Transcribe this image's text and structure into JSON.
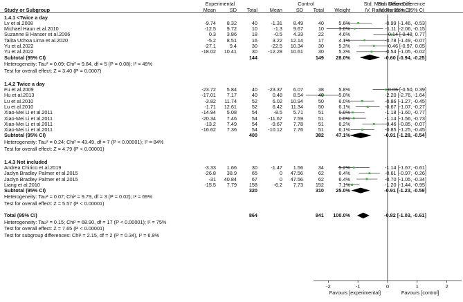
{
  "header": {
    "group_experimental": "Experimental",
    "group_control": "Control",
    "std_mean_diff": "Std. Mean Difference",
    "study_label": "Study or Subgroup",
    "mean": "Mean",
    "sd": "SD",
    "total": "Total",
    "weight": "Weight",
    "method": "IV, Random, 95% CI"
  },
  "chart_data": {
    "type": "forest",
    "title": "Std. Mean Difference",
    "method": "IV, Random, 95% CI",
    "x_ticks": [
      "-2",
      "-1",
      "0",
      "1",
      "2"
    ],
    "xlim": [
      -2.5,
      2.5
    ],
    "favours_left": "Favours [experimental]",
    "favours_right": "Favours [control]",
    "subgroups": [
      {
        "name": "1.4.1 <Twice a day",
        "studies": [
          {
            "study": "Lv et al.2008",
            "exp_mean": "-9.74",
            "exp_sd": "8.32",
            "exp_total": "40",
            "ctl_mean": "-1.31",
            "ctl_sd": "8.49",
            "ctl_total": "40",
            "weight": "5.6%",
            "ci_text": "-0.99 [-1.46, -0.53]",
            "est": -0.99,
            "lo": -1.46,
            "hi": -0.53
          },
          {
            "study": "Michael Haun et al.2010",
            "exp_mean": "-12.5",
            "exp_sd": "9.72",
            "exp_total": "10",
            "ctl_mean": "-1.3",
            "ctl_sd": "9.67",
            "ctl_total": "10",
            "weight": "3.0%",
            "ci_text": "-1.11 [-2.06, -0.15]",
            "est": -1.11,
            "lo": -2.06,
            "hi": -0.15
          },
          {
            "study": "Suzanne B Hanser et al.2006",
            "exp_mean": "0.3",
            "exp_sd": "3.86",
            "exp_total": "18",
            "ctl_mean": "-0.5",
            "ctl_sd": "4.33",
            "ctl_total": "22",
            "weight": "4.6%",
            "ci_text": "0.14 [-0.48, 0.77]",
            "est": 0.14,
            "lo": -0.48,
            "hi": 0.77
          },
          {
            "study": "Talita Uchoa Lima et al.2020",
            "exp_mean": "-5.2",
            "exp_sd": "8.51",
            "exp_total": "16",
            "ctl_mean": "3.22",
            "ctl_sd": "12.14",
            "ctl_total": "17",
            "weight": "4.1%",
            "ci_text": "-0.78 [-1.49, -0.07]",
            "est": -0.78,
            "lo": -1.49,
            "hi": -0.07
          },
          {
            "study": "Yu et al.2022",
            "exp_mean": "-27.1",
            "exp_sd": "9.4",
            "exp_total": "30",
            "ctl_mean": "-22.5",
            "ctl_sd": "10.34",
            "ctl_total": "30",
            "weight": "5.3%",
            "ci_text": "-0.46 [-0.97, 0.05]",
            "est": -0.46,
            "lo": -0.97,
            "hi": 0.05
          },
          {
            "study": "Yu et al.2022",
            "exp_mean": "-18.02",
            "exp_sd": "10.41",
            "exp_total": "30",
            "ctl_mean": "-12.28",
            "ctl_sd": "10.61",
            "ctl_total": "30",
            "weight": "5.3%",
            "ci_text": "-0.54 [-1.05, -0.02]",
            "est": -0.54,
            "lo": -1.05,
            "hi": -0.02
          }
        ],
        "subtotal": {
          "label": "Subtotal (95% CI)",
          "exp_total": "144",
          "ctl_total": "149",
          "weight": "28.0%",
          "ci_text": "-0.60 [-0.94, -0.25]",
          "est": -0.6,
          "lo": -0.94,
          "hi": -0.25
        },
        "heterogeneity": "Heterogeneity: Tau² = 0.09; Chi² = 9.84, df = 5 (P = 0.08); I² = 49%",
        "overall_test": "Test for overall effect: Z = 3.40 (P = 0.0007)"
      },
      {
        "name": "1.4.2 Twice a day",
        "studies": [
          {
            "study": "Fu et al.2009",
            "exp_mean": "-23.72",
            "exp_sd": "5.84",
            "exp_total": "40",
            "ctl_mean": "-23.37",
            "ctl_sd": "6.07",
            "ctl_total": "38",
            "weight": "5.8%",
            "ci_text": "-0.06 [-0.50, 0.39]",
            "est": -0.06,
            "lo": -0.5,
            "hi": 0.39
          },
          {
            "study": "Hu et al.2013",
            "exp_mean": "-17.01",
            "exp_sd": "7.17",
            "exp_total": "40",
            "ctl_mean": "0.48",
            "ctl_sd": "8.54",
            "ctl_total": "40",
            "weight": "5.0%",
            "ci_text": "-2.20 [-2.76, -1.64]",
            "est": -2.2,
            "lo": -2.76,
            "hi": -1.64
          },
          {
            "study": "Lu et al.2010",
            "exp_mean": "-3.82",
            "exp_sd": "11.74",
            "exp_total": "52",
            "ctl_mean": "6.02",
            "ctl_sd": "10.94",
            "ctl_total": "50",
            "weight": "6.0%",
            "ci_text": "-0.86 [-1.27, -0.45]",
            "est": -0.86,
            "lo": -1.27,
            "hi": -0.45
          },
          {
            "study": "Lu et al.2010",
            "exp_mean": "-1.71",
            "exp_sd": "12.61",
            "exp_total": "52",
            "ctl_mean": "6.42",
            "ctl_sd": "11.34",
            "ctl_total": "50",
            "weight": "6.1%",
            "ci_text": "-0.67 [-1.07, -0.27]",
            "est": -0.67,
            "lo": -1.07,
            "hi": -0.27
          },
          {
            "study": "Xiao-Mei Li et al.2011",
            "exp_mean": "-14.94",
            "exp_sd": "5.08",
            "exp_total": "54",
            "ctl_mean": "-8.5",
            "ctl_sd": "5.71",
            "ctl_total": "51",
            "weight": "6.0%",
            "ci_text": "-1.18 [-1.60, -0.77]",
            "est": -1.18,
            "lo": -1.6,
            "hi": -0.77
          },
          {
            "study": "Xiao-Mei Li et al.2011",
            "exp_mean": "-20.34",
            "exp_sd": "7.46",
            "exp_total": "54",
            "ctl_mean": "-11.67",
            "ctl_sd": "7.59",
            "ctl_total": "51",
            "weight": "6.0%",
            "ci_text": "-1.14 [-1.56, -0.73]",
            "est": -1.14,
            "lo": -1.56,
            "hi": -0.73
          },
          {
            "study": "Xiao-Mei Li et al.2011",
            "exp_mean": "-13.2",
            "exp_sd": "7.49",
            "exp_total": "54",
            "ctl_mean": "-9.67",
            "ctl_sd": "7.78",
            "ctl_total": "51",
            "weight": "6.2%",
            "ci_text": "-0.46 [-0.85, -0.07]",
            "est": -0.46,
            "lo": -0.85,
            "hi": -0.07
          },
          {
            "study": "Xiao-Mei Li et al.2011",
            "exp_mean": "-16.62",
            "exp_sd": "7.36",
            "exp_total": "54",
            "ctl_mean": "-10.12",
            "ctl_sd": "7.76",
            "ctl_total": "51",
            "weight": "6.1%",
            "ci_text": "-0.85 [-1.25, -0.45]",
            "est": -0.85,
            "lo": -1.25,
            "hi": -0.45
          }
        ],
        "subtotal": {
          "label": "Subtotal (95% CI)",
          "exp_total": "400",
          "ctl_total": "382",
          "weight": "47.1%",
          "ci_text": "-0.91 [-1.28, -0.54]",
          "est": -0.91,
          "lo": -1.28,
          "hi": -0.54
        },
        "heterogeneity": "Heterogeneity: Tau² = 0.24; Chi² = 43.49, df = 7 (P < 0.00001); I² = 84%",
        "overall_test": "Test for overall effect: Z = 4.79 (P < 0.00001)"
      },
      {
        "name": "1.4.3 Not included",
        "studies": [
          {
            "study": "Andrea Chirico et al.2019",
            "exp_mean": "-3.33",
            "exp_sd": "1.66",
            "exp_total": "30",
            "ctl_mean": "-1.47",
            "ctl_sd": "1.56",
            "ctl_total": "34",
            "weight": "5.2%",
            "ci_text": "-1.14 [-1.67, -0.61]",
            "est": -1.14,
            "lo": -1.67,
            "hi": -0.61
          },
          {
            "study": "Jaclyn Bradley Palmer et al.2015",
            "exp_mean": "-26.8",
            "exp_sd": "38.9",
            "exp_total": "65",
            "ctl_mean": "0",
            "ctl_sd": "47.56",
            "ctl_total": "62",
            "weight": "6.4%",
            "ci_text": "-0.61 [-0.97, -0.26]",
            "est": -0.61,
            "lo": -0.97,
            "hi": -0.26
          },
          {
            "study": "Jaclyn Bradley Palmer et al.2015",
            "exp_mean": "-31",
            "exp_sd": "40.84",
            "exp_total": "67",
            "ctl_mean": "0",
            "ctl_sd": "47.56",
            "ctl_total": "62",
            "weight": "6.4%",
            "ci_text": "-0.70 [-1.05, -0.34]",
            "est": -0.7,
            "lo": -1.05,
            "hi": -0.34
          },
          {
            "study": "Liang et al.2010",
            "exp_mean": "-15.5",
            "exp_sd": "7.79",
            "exp_total": "158",
            "ctl_mean": "-6.2",
            "ctl_sd": "7.73",
            "ctl_total": "152",
            "weight": "7.1%",
            "ci_text": "-1.20 [-1.44, -0.95]",
            "est": -1.2,
            "lo": -1.44,
            "hi": -0.95
          }
        ],
        "subtotal": {
          "label": "Subtotal (95% CI)",
          "exp_total": "320",
          "ctl_total": "310",
          "weight": "25.0%",
          "ci_text": "-0.91 [-1.23, -0.59]",
          "est": -0.91,
          "lo": -1.23,
          "hi": -0.59
        },
        "heterogeneity": "Heterogeneity: Tau² = 0.07; Chi² = 9.79, df = 3 (P = 0.02); I² = 69%",
        "overall_test": "Test for overall effect: Z = 5.57 (P < 0.00001)"
      }
    ],
    "total": {
      "label": "Total (95% CI)",
      "exp_total": "864",
      "ctl_total": "841",
      "weight": "100.0%",
      "ci_text": "-0.82 [-1.03, -0.61]",
      "est": -0.82,
      "lo": -1.03,
      "hi": -0.61
    },
    "total_heterogeneity": "Heterogeneity: Tau² = 0.15; Chi² = 68.90, df = 17 (P < 0.00001); I² = 75%",
    "total_overall_test": "Test for overall effect: Z = 7.65 (P < 0.00001)",
    "subgroup_test": "Test for subgroup differences: Chi² = 2.15, df = 2 (P = 0.34), I² = 6.9%"
  },
  "colors": {
    "text": "#111111",
    "line": "#333333",
    "study_marker": "#2db82d",
    "diamond": "#000000",
    "zero_line": "#222222"
  }
}
